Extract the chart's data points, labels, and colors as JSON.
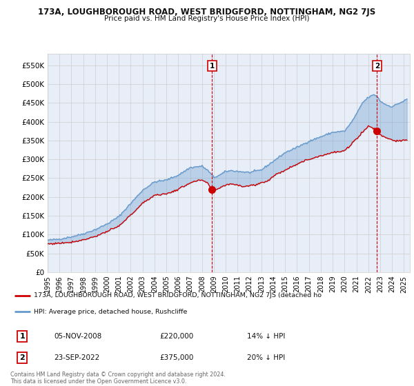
{
  "title": "173A, LOUGHBOROUGH ROAD, WEST BRIDGFORD, NOTTINGHAM, NG2 7JS",
  "subtitle": "Price paid vs. HM Land Registry's House Price Index (HPI)",
  "xlim_start": 1995.0,
  "xlim_end": 2025.5,
  "ylim": [
    0,
    580000
  ],
  "yticks": [
    0,
    50000,
    100000,
    150000,
    200000,
    250000,
    300000,
    350000,
    400000,
    450000,
    500000,
    550000
  ],
  "marker1_date": 2008.846,
  "marker1_price": 220000,
  "marker2_date": 2022.73,
  "marker2_price": 375000,
  "legend_line1": "173A, LOUGHBOROUGH ROAD, WEST BRIDGFORD, NOTTINGHAM, NG2 7JS (detached ho",
  "legend_line2": "HPI: Average price, detached house, Rushcliffe",
  "annotation1_date": "05-NOV-2008",
  "annotation1_price": "£220,000",
  "annotation1_pct": "14% ↓ HPI",
  "annotation2_date": "23-SEP-2022",
  "annotation2_price": "£375,000",
  "annotation2_pct": "20% ↓ HPI",
  "footer": "Contains HM Land Registry data © Crown copyright and database right 2024.\nThis data is licensed under the Open Government Licence v3.0.",
  "hpi_color": "#6699cc",
  "price_color": "#cc0000",
  "background_color": "#e8eef8",
  "grid_color": "#cccccc",
  "hpi_anchors": {
    "1995.0": 85000,
    "1996.0": 88000,
    "1997.0": 94000,
    "1998.0": 102000,
    "1999.0": 113000,
    "2000.0": 128000,
    "2001.0": 148000,
    "2002.0": 183000,
    "2003.0": 218000,
    "2004.0": 240000,
    "2005.0": 245000,
    "2006.0": 258000,
    "2007.0": 278000,
    "2008.0": 282000,
    "2008.5": 270000,
    "2009.0": 252000,
    "2009.5": 258000,
    "2010.0": 268000,
    "2010.5": 270000,
    "2011.0": 268000,
    "2012.0": 265000,
    "2013.0": 272000,
    "2014.0": 295000,
    "2015.0": 318000,
    "2016.0": 332000,
    "2017.0": 348000,
    "2018.0": 360000,
    "2019.0": 372000,
    "2020.0": 375000,
    "2020.5": 395000,
    "2021.0": 420000,
    "2021.5": 450000,
    "2022.0": 465000,
    "2022.5": 472000,
    "2022.73": 468000,
    "2023.0": 455000,
    "2023.5": 445000,
    "2024.0": 440000,
    "2024.5": 448000,
    "2025.0": 455000,
    "2025.25": 460000
  },
  "price_anchors": {
    "1995.0": 75000,
    "1996.0": 77000,
    "1997.0": 80000,
    "1998.0": 86000,
    "1999.0": 95000,
    "2000.0": 108000,
    "2001.0": 122000,
    "2002.0": 152000,
    "2003.0": 183000,
    "2004.0": 205000,
    "2005.0": 208000,
    "2006.0": 220000,
    "2007.0": 238000,
    "2008.0": 245000,
    "2008.5": 235000,
    "2008.846": 220000,
    "2009.0": 215000,
    "2009.5": 225000,
    "2010.0": 232000,
    "2010.5": 235000,
    "2011.0": 232000,
    "2011.5": 228000,
    "2012.0": 230000,
    "2012.5": 232000,
    "2013.0": 238000,
    "2013.5": 242000,
    "2014.0": 255000,
    "2015.0": 272000,
    "2016.0": 288000,
    "2017.0": 300000,
    "2018.0": 310000,
    "2019.0": 318000,
    "2020.0": 322000,
    "2020.5": 338000,
    "2021.0": 355000,
    "2021.5": 372000,
    "2022.0": 388000,
    "2022.5": 382000,
    "2022.73": 375000,
    "2023.0": 365000,
    "2023.5": 358000,
    "2024.0": 352000,
    "2024.5": 348000,
    "2025.0": 350000,
    "2025.25": 352000
  }
}
